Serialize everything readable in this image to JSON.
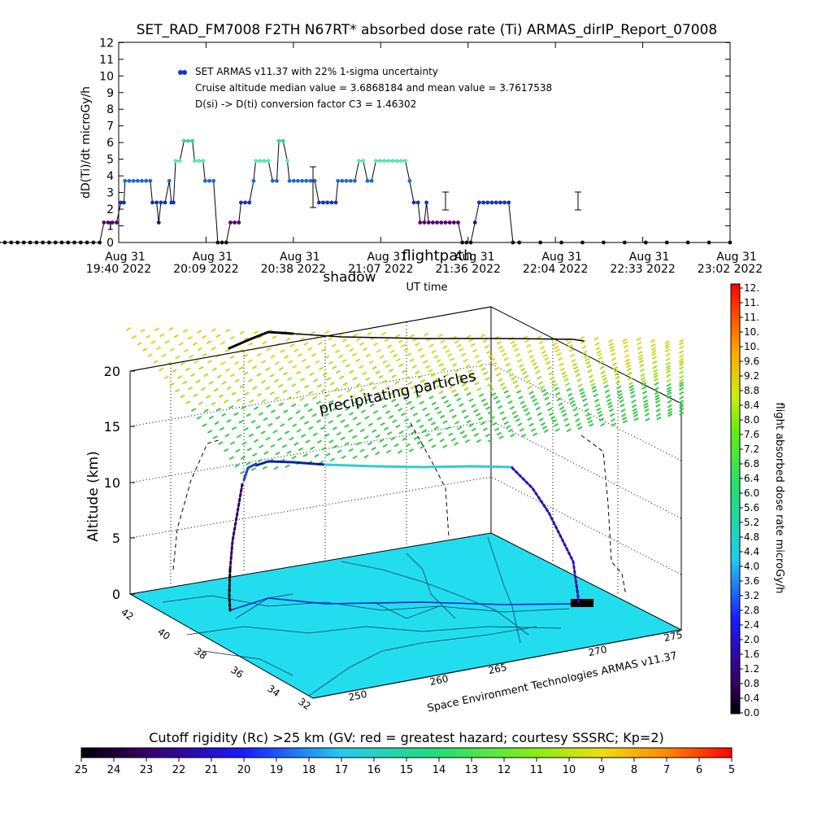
{
  "chart_data": [
    {
      "type": "scatter",
      "title": "SET_RAD_FM7008  F2TH N67RT* absorbed dose rate (Ti) ARMAS_dirIP_Report_07008",
      "ylabel": "dD(Ti)/dt microGy/h",
      "xlabel": "UT time",
      "ylim": [
        0,
        12
      ],
      "yticks": [
        "0",
        "1",
        "2",
        "3",
        "4",
        "5",
        "6",
        "7",
        "8",
        "9",
        "10",
        "11",
        "12"
      ],
      "xticks": [
        {
          "line1": "Aug 31",
          "line2": "19:40 2022"
        },
        {
          "line1": "Aug 31",
          "line2": "20:09 2022"
        },
        {
          "line1": "Aug 31",
          "line2": "20:38 2022"
        },
        {
          "line1": "Aug 31",
          "line2": "21:07 2022"
        },
        {
          "line1": "Aug 31",
          "line2": "21:36 2022"
        },
        {
          "line1": "Aug 31",
          "line2": "22:04 2022"
        },
        {
          "line1": "Aug 31",
          "line2": "22:33 2022"
        },
        {
          "line1": "Aug 31",
          "line2": "23:02 2022"
        }
      ],
      "xlim_minutes": [
        0,
        202
      ],
      "overlay_labels": [
        "shadow",
        "flightpath"
      ],
      "legend": {
        "placement": "top-left",
        "series_label": "SET ARMAS v11.37 with 22% 1-sigma uncertainty",
        "line2": "Cruise altitude median value = 3.6868184 and mean value = 3.7617538",
        "line3": "D(si) -> D(ti) conversion factor C3 = 1.46302"
      },
      "series": [
        {
          "values": [
            [
              20,
              0
            ],
            [
              23,
              0
            ],
            [
              26,
              0
            ],
            [
              29,
              0
            ],
            [
              32,
              0
            ],
            [
              35,
              0
            ],
            [
              38,
              0
            ],
            [
              41,
              0
            ],
            [
              44,
              0
            ],
            [
              47,
              0
            ],
            [
              50,
              0
            ],
            [
              53,
              0
            ],
            [
              56,
              0
            ],
            [
              59,
              0
            ],
            [
              62,
              0
            ],
            [
              65,
              0
            ],
            [
              68,
              0
            ],
            [
              71,
              0
            ],
            [
              73,
              1.2
            ],
            [
              75,
              1.2
            ],
            [
              77,
              1.2
            ],
            [
              79,
              1.2
            ],
            [
              81,
              2.4
            ],
            [
              82.5,
              2.4
            ],
            [
              83,
              3.7
            ],
            [
              85,
              3.7
            ],
            [
              87,
              3.7
            ],
            [
              89,
              3.7
            ],
            [
              91,
              3.7
            ],
            [
              93,
              3.7
            ],
            [
              95,
              3.7
            ],
            [
              96,
              2.4
            ],
            [
              98,
              2.4
            ],
            [
              99,
              1.2
            ],
            [
              100,
              2.4
            ],
            [
              102,
              2.4
            ],
            [
              104,
              3.7
            ],
            [
              105,
              2.4
            ],
            [
              106,
              2.4
            ],
            [
              107,
              4.9
            ],
            [
              109,
              4.9
            ],
            [
              111,
              6.1
            ],
            [
              113,
              6.1
            ],
            [
              115,
              6.1
            ],
            [
              116,
              4.9
            ],
            [
              118,
              4.9
            ],
            [
              120,
              4.9
            ],
            [
              121,
              3.7
            ],
            [
              123,
              3.7
            ],
            [
              125,
              3.7
            ],
            [
              127,
              0
            ],
            [
              129,
              0
            ],
            [
              131,
              0
            ],
            [
              133,
              1.2
            ],
            [
              135,
              1.2
            ],
            [
              137,
              1.2
            ],
            [
              138,
              2.4
            ],
            [
              140,
              2.4
            ],
            [
              142,
              2.4
            ],
            [
              144,
              3.7
            ],
            [
              145,
              4.9
            ],
            [
              147,
              4.9
            ],
            [
              149,
              4.9
            ],
            [
              151,
              4.9
            ],
            [
              153,
              3.7
            ],
            [
              155,
              3.7
            ],
            [
              156,
              6.1
            ],
            [
              158,
              6.1
            ],
            [
              160,
              4.9
            ],
            [
              161,
              3.7
            ],
            [
              163,
              3.7
            ],
            [
              165,
              3.7
            ],
            [
              167,
              3.7
            ],
            [
              169,
              3.7
            ],
            [
              171,
              3.7
            ],
            [
              173,
              3.7
            ],
            [
              175,
              2.4
            ],
            [
              177,
              2.4
            ],
            [
              179,
              2.4
            ],
            [
              181,
              2.4
            ],
            [
              183,
              2.4
            ],
            [
              184,
              3.7
            ],
            [
              186,
              3.7
            ],
            [
              188,
              3.7
            ],
            [
              190,
              3.7
            ],
            [
              192,
              3.7
            ],
            [
              194,
              4.9
            ],
            [
              196,
              4.9
            ],
            [
              198,
              3.7
            ],
            [
              200,
              3.7
            ],
            [
              202,
              4.9
            ],
            [
              204,
              4.9
            ],
            [
              206,
              4.9
            ],
            [
              208,
              4.9
            ],
            [
              210,
              4.9
            ],
            [
              212,
              4.9
            ],
            [
              214,
              4.9
            ],
            [
              216,
              4.9
            ],
            [
              218,
              3.7
            ],
            [
              220,
              2.4
            ],
            [
              222,
              2.4
            ],
            [
              223,
              1.2
            ],
            [
              225,
              1.2
            ],
            [
              226,
              2.4
            ],
            [
              227,
              1.2
            ],
            [
              229,
              1.2
            ],
            [
              231,
              1.2
            ],
            [
              233,
              1.2
            ],
            [
              235,
              1.2
            ],
            [
              237,
              1.2
            ],
            [
              239,
              1.2
            ],
            [
              241,
              1.2
            ],
            [
              243,
              0
            ],
            [
              245,
              0
            ],
            [
              247,
              0
            ],
            [
              249,
              1.2
            ],
            [
              251,
              2.4
            ],
            [
              253,
              2.4
            ],
            [
              255,
              2.4
            ],
            [
              257,
              2.4
            ],
            [
              259,
              2.4
            ],
            [
              261,
              2.4
            ],
            [
              263,
              2.4
            ],
            [
              265,
              2.4
            ],
            [
              267,
              0
            ],
            [
              270,
              0
            ],
            [
              280,
              0
            ],
            [
              290,
              0
            ],
            [
              300,
              0
            ],
            [
              310,
              0
            ],
            [
              320,
              0
            ],
            [
              330,
              0
            ],
            [
              340,
              0
            ],
            [
              350,
              0
            ],
            [
              360,
              0
            ],
            [
              370,
              0
            ]
          ]
        }
      ],
      "colorbar": {
        "label": "flight absorbed dose rate microGy/h",
        "ticks": [
          "0.0",
          "0.4",
          "0.8",
          "1.2",
          "1.6",
          "2.0",
          "2.4",
          "2.8",
          "3.2",
          "3.6",
          "4.0",
          "4.4",
          "4.8",
          "5.2",
          "5.6",
          "6.0",
          "6.4",
          "6.8",
          "7.2",
          "7.6",
          "8.0",
          "8.4",
          "8.8",
          "9.2",
          "9.6",
          "10.",
          "10.",
          "11.",
          "11.",
          "12."
        ]
      }
    },
    {
      "type": "surface3d",
      "zlabel": "Altitude (km)",
      "zticks": [
        "0",
        "5",
        "10",
        "15",
        "20"
      ],
      "lat_ticks": [
        "42",
        "40",
        "38",
        "36",
        "34",
        "32"
      ],
      "lon_ticks": [
        "250",
        "260",
        "265",
        "270",
        "275"
      ],
      "annotation": "precipitating particles",
      "credit": "Space Environment Technologies ARMAS v11.37"
    },
    {
      "type": "colorbar",
      "title": "Cutoff rigidity (Rc) >25 km (GV: red = greatest hazard; courtesy SSSRC; Kp=2)",
      "ticks": [
        "25",
        "24",
        "23",
        "22",
        "21",
        "20",
        "19",
        "18",
        "17",
        "16",
        "15",
        "14",
        "13",
        "12",
        "11",
        "10",
        "9",
        "8",
        "7",
        "6",
        "5"
      ]
    }
  ],
  "colors": {
    "ground": "#22ddee",
    "marker": "#1133cc",
    "cruise_marker": "#33dddd",
    "high_marker": "#55ee88"
  }
}
